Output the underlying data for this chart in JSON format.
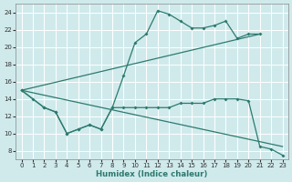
{
  "bg_color": "#d0eaec",
  "grid_color": "#c8dfe0",
  "line_color": "#2d7a6e",
  "xlabel": "Humidex (Indice chaleur)",
  "xlim": [
    -0.5,
    23.5
  ],
  "ylim": [
    7,
    25
  ],
  "yticks": [
    8,
    10,
    12,
    14,
    16,
    18,
    20,
    22,
    24
  ],
  "xticks": [
    0,
    1,
    2,
    3,
    4,
    5,
    6,
    7,
    8,
    9,
    10,
    11,
    12,
    13,
    14,
    15,
    16,
    17,
    18,
    19,
    20,
    21,
    22,
    23
  ],
  "line1_x": [
    0,
    1,
    2,
    3,
    4,
    5,
    6,
    7,
    8,
    9,
    10,
    11,
    12,
    13,
    14,
    15,
    16,
    17,
    18,
    19,
    20,
    21
  ],
  "line1_y": [
    15,
    14,
    13,
    12.5,
    10,
    10.5,
    11,
    10.5,
    13,
    16.7,
    20.5,
    21.5,
    24.2,
    23.8,
    23,
    22.2,
    22.2,
    22.5,
    23,
    21,
    21.5,
    21.5
  ],
  "line2_x": [
    0,
    21
  ],
  "line2_y": [
    15,
    21.5
  ],
  "line3_x": [
    0,
    2,
    3,
    4,
    5,
    6,
    7,
    8,
    9,
    10,
    11,
    12,
    13,
    14,
    15,
    16,
    17,
    18,
    19,
    20,
    21,
    22,
    23
  ],
  "line3_y": [
    15,
    13,
    12.5,
    10,
    10.5,
    11,
    10.5,
    13,
    13,
    13,
    13,
    13,
    13,
    13.5,
    13.5,
    13.5,
    14,
    14,
    14,
    13.8,
    8.5,
    8.2,
    7.5
  ],
  "line4_x": [
    0,
    23
  ],
  "line4_y": [
    15,
    8.5
  ]
}
